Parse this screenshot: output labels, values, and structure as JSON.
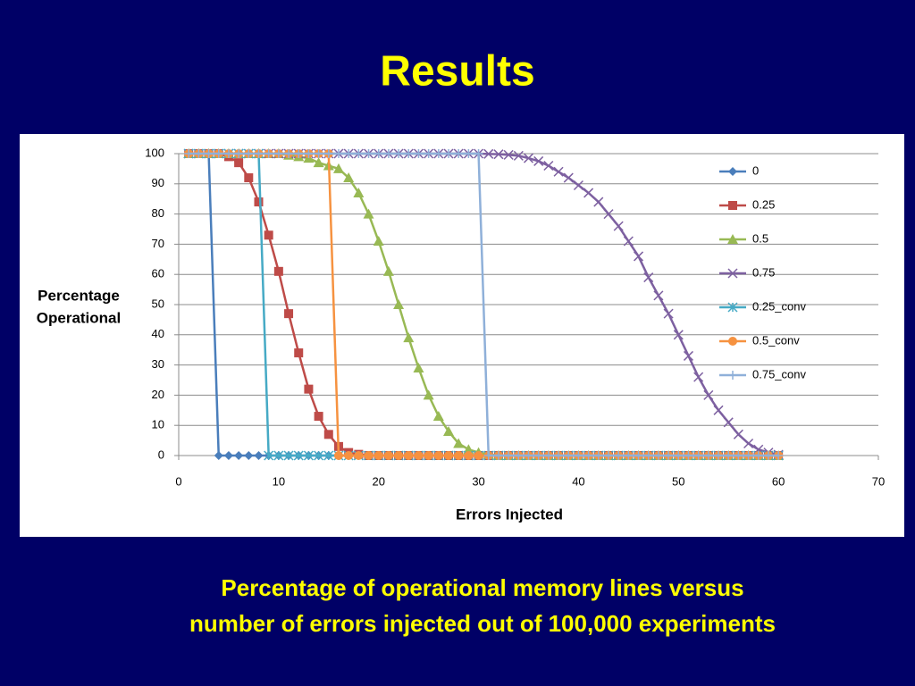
{
  "title": "Results",
  "caption": [
    "Percentage of operational memory lines versus",
    "number of errors injected out of 100,000 experiments"
  ],
  "chart_data": {
    "type": "line",
    "x_label": "Errors Injected",
    "y_label": [
      "Percentage",
      "Operational"
    ],
    "xlim": [
      0,
      70
    ],
    "xticks": [
      0,
      10,
      20,
      30,
      40,
      50,
      60,
      70
    ],
    "ylim": [
      0,
      100
    ],
    "yticks": [
      0,
      10,
      20,
      30,
      40,
      50,
      60,
      70,
      80,
      90,
      100
    ],
    "grid": true,
    "legend": "right",
    "x": [
      1,
      2,
      3,
      4,
      5,
      6,
      7,
      8,
      9,
      10,
      11,
      12,
      13,
      14,
      15,
      16,
      17,
      18,
      19,
      20,
      21,
      22,
      23,
      24,
      25,
      26,
      27,
      28,
      29,
      30,
      31,
      32,
      33,
      34,
      35,
      36,
      37,
      38,
      39,
      40,
      41,
      42,
      43,
      44,
      45,
      46,
      47,
      48,
      49,
      50,
      51,
      52,
      53,
      54,
      55,
      56,
      57,
      58,
      59,
      60
    ],
    "series": [
      {
        "name": "0",
        "color": "#4a7ebb",
        "marker": "diamond",
        "values": [
          100,
          100,
          100,
          0,
          0,
          0,
          0,
          0,
          0,
          0,
          0,
          0,
          0,
          0,
          0,
          0,
          0,
          0,
          0,
          0,
          0,
          0,
          0,
          0,
          0,
          0,
          0,
          0,
          0,
          0,
          0,
          0,
          0,
          0,
          0,
          0,
          0,
          0,
          0,
          0,
          0,
          0,
          0,
          0,
          0,
          0,
          0,
          0,
          0,
          0,
          0,
          0,
          0,
          0,
          0,
          0,
          0,
          0,
          0,
          0
        ]
      },
      {
        "name": "0.25",
        "color": "#be4b48",
        "marker": "square",
        "values": [
          100,
          100,
          100,
          100,
          99,
          97,
          92,
          84,
          73,
          61,
          47,
          34,
          22,
          13,
          7,
          3,
          1,
          0.4,
          0,
          0,
          0,
          0,
          0,
          0,
          0,
          0,
          0,
          0,
          0,
          0,
          0,
          0,
          0,
          0,
          0,
          0,
          0,
          0,
          0,
          0,
          0,
          0,
          0,
          0,
          0,
          0,
          0,
          0,
          0,
          0,
          0,
          0,
          0,
          0,
          0,
          0,
          0,
          0,
          0,
          0
        ]
      },
      {
        "name": "0.5",
        "color": "#98b954",
        "marker": "triangle",
        "values": [
          100,
          100,
          100,
          100,
          100,
          100,
          100,
          100,
          100,
          100,
          99.5,
          99,
          98.5,
          97,
          96,
          95,
          92,
          87,
          80,
          71,
          61,
          50,
          39,
          29,
          20,
          13,
          8,
          4,
          2,
          1,
          0.4,
          0,
          0,
          0,
          0,
          0,
          0,
          0,
          0,
          0,
          0,
          0,
          0,
          0,
          0,
          0,
          0,
          0,
          0,
          0,
          0,
          0,
          0,
          0,
          0,
          0,
          0,
          0,
          0,
          0
        ]
      },
      {
        "name": "0.75",
        "color": "#7d60a0",
        "marker": "x",
        "values": [
          100,
          100,
          100,
          100,
          100,
          100,
          100,
          100,
          100,
          100,
          100,
          100,
          100,
          100,
          100,
          100,
          100,
          100,
          100,
          100,
          100,
          100,
          100,
          100,
          100,
          100,
          100,
          100,
          100,
          100,
          99.9,
          99.8,
          99.6,
          99.3,
          98.5,
          97.5,
          96,
          94,
          92,
          89.5,
          87,
          84,
          80,
          76,
          71,
          66,
          59,
          53,
          47,
          40,
          33,
          26,
          20,
          15,
          11,
          7,
          4,
          2,
          1,
          0.3
        ]
      },
      {
        "name": "0.25_conv",
        "color": "#46aac5",
        "marker": "star",
        "values": [
          100,
          100,
          100,
          100,
          100,
          100,
          100,
          100,
          0,
          0,
          0,
          0,
          0,
          0,
          0,
          0,
          0,
          0,
          0,
          0,
          0,
          0,
          0,
          0,
          0,
          0,
          0,
          0,
          0,
          0,
          0,
          0,
          0,
          0,
          0,
          0,
          0,
          0,
          0,
          0,
          0,
          0,
          0,
          0,
          0,
          0,
          0,
          0,
          0,
          0,
          0,
          0,
          0,
          0,
          0,
          0,
          0,
          0,
          0,
          0
        ]
      },
      {
        "name": "0.5_conv",
        "color": "#f69240",
        "marker": "circle",
        "values": [
          100,
          100,
          100,
          100,
          100,
          100,
          100,
          100,
          100,
          100,
          100,
          100,
          100,
          100,
          100,
          0,
          0,
          0,
          0,
          0,
          0,
          0,
          0,
          0,
          0,
          0,
          0,
          0,
          0,
          0,
          0,
          0,
          0,
          0,
          0,
          0,
          0,
          0,
          0,
          0,
          0,
          0,
          0,
          0,
          0,
          0,
          0,
          0,
          0,
          0,
          0,
          0,
          0,
          0,
          0,
          0,
          0,
          0,
          0,
          0
        ]
      },
      {
        "name": "0.75_conv",
        "color": "#8fb0d9",
        "marker": "plus",
        "values": [
          100,
          100,
          100,
          100,
          100,
          100,
          100,
          100,
          100,
          100,
          100,
          100,
          100,
          100,
          100,
          100,
          100,
          100,
          100,
          100,
          100,
          100,
          100,
          100,
          100,
          100,
          100,
          100,
          100,
          100,
          0,
          0,
          0,
          0,
          0,
          0,
          0,
          0,
          0,
          0,
          0,
          0,
          0,
          0,
          0,
          0,
          0,
          0,
          0,
          0,
          0,
          0,
          0,
          0,
          0,
          0,
          0,
          0,
          0,
          0
        ]
      }
    ]
  }
}
